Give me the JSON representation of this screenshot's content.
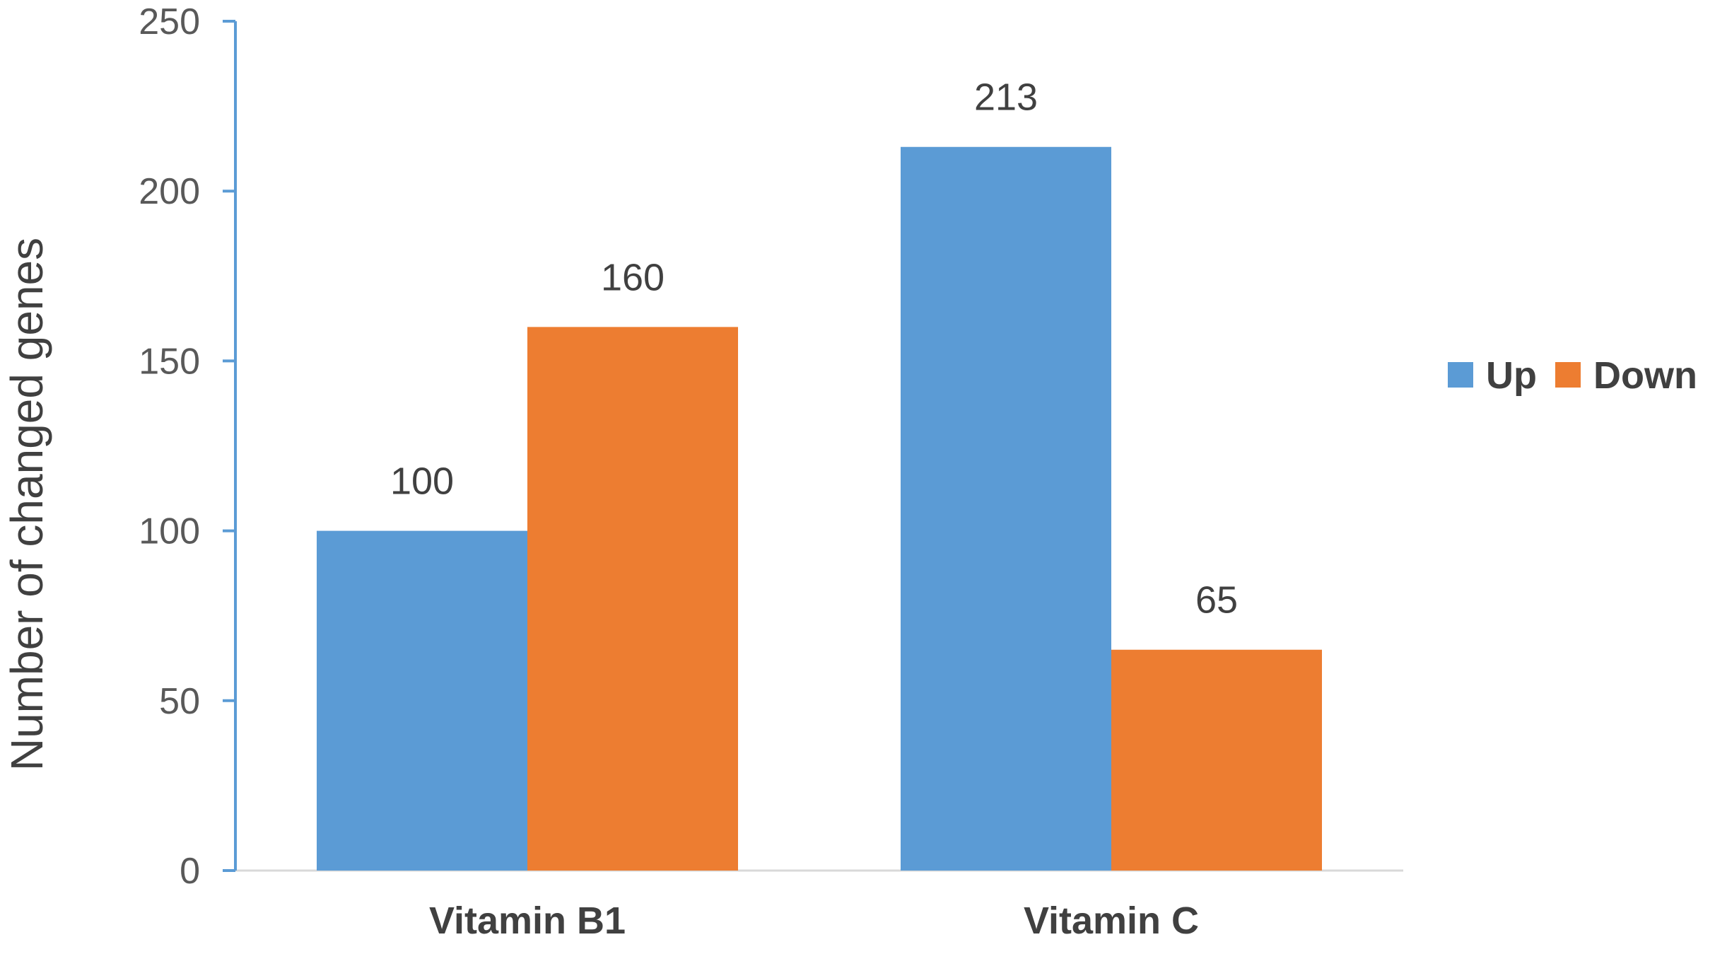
{
  "chart_data": {
    "type": "bar",
    "categories": [
      "Vitamin B1",
      "Vitamin C"
    ],
    "series": [
      {
        "name": "Up",
        "values": [
          100,
          213
        ],
        "color": "#5B9BD5"
      },
      {
        "name": "Down",
        "values": [
          160,
          65
        ],
        "color": "#ED7D31"
      }
    ],
    "xlabel": "",
    "ylabel": "Number of changed genes",
    "ylim": [
      0,
      250
    ],
    "yticks": [
      0,
      50,
      100,
      150,
      200,
      250
    ],
    "grid": false,
    "legend_position": "right",
    "axis_color": "#5B9BD5",
    "baseline_color": "#D9D9D9"
  }
}
